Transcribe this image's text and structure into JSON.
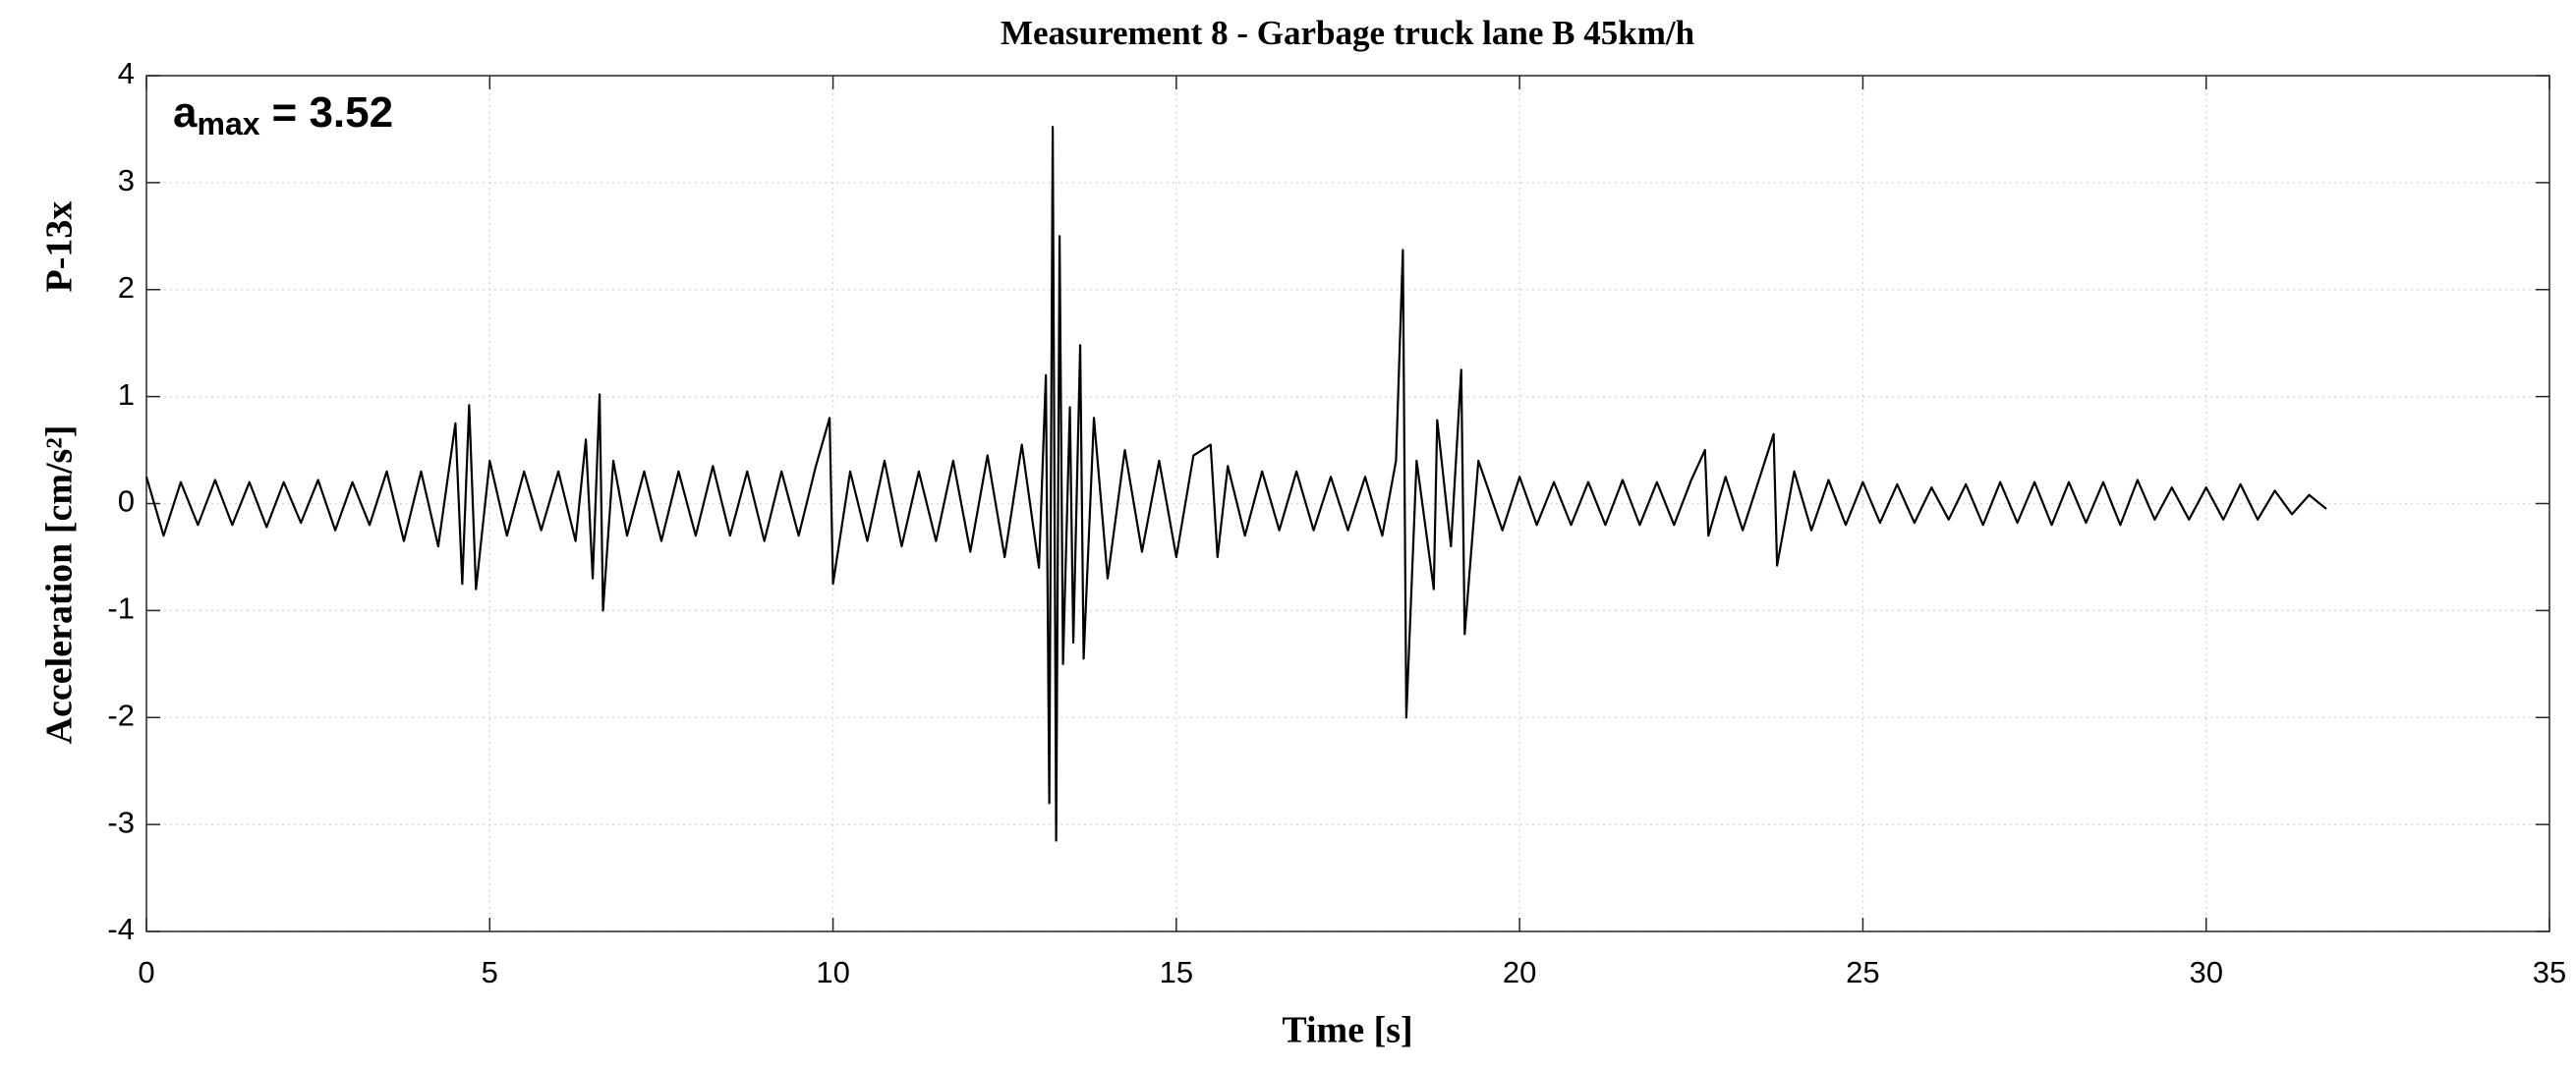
{
  "chart_data": {
    "type": "line",
    "title": "Measurement 8 - Garbage truck lane B 45km/h",
    "x_label": "Time [s]",
    "y_label": "Acceleration [cm/s²]",
    "y_label_top": "P-13x",
    "annotation": {
      "base": "a",
      "subscript": "max",
      "rest": "= 3.52"
    },
    "color": "#000000",
    "grid": true,
    "xlim": [
      0,
      35
    ],
    "xticks": [
      0,
      5,
      10,
      15,
      20,
      25,
      30,
      35
    ],
    "ylim": [
      -4,
      4
    ],
    "yticks": [
      -4,
      -3,
      -2,
      -1,
      0,
      1,
      2,
      3,
      4
    ],
    "x": [
      0,
      0.25,
      0.5,
      0.75,
      1,
      1.25,
      1.5,
      1.75,
      2,
      2.25,
      2.5,
      2.75,
      3,
      3.25,
      3.5,
      3.75,
      4,
      4.25,
      4.5,
      4.6,
      4.7,
      4.8,
      5,
      5.25,
      5.5,
      5.75,
      6,
      6.25,
      6.4,
      6.5,
      6.6,
      6.65,
      6.8,
      7,
      7.25,
      7.5,
      7.75,
      8,
      8.25,
      8.5,
      8.75,
      9,
      9.25,
      9.5,
      9.75,
      9.95,
      10,
      10.25,
      10.5,
      10.75,
      11,
      11.25,
      11.5,
      11.75,
      12,
      12.25,
      12.5,
      12.75,
      13,
      13.1,
      13.15,
      13.2,
      13.25,
      13.3,
      13.35,
      13.45,
      13.5,
      13.6,
      13.65,
      13.8,
      14,
      14.25,
      14.5,
      14.75,
      15,
      15.25,
      15.5,
      15.6,
      15.75,
      16,
      16.25,
      16.5,
      16.75,
      17,
      17.25,
      17.5,
      17.75,
      18,
      18.2,
      18.3,
      18.35,
      18.5,
      18.75,
      18.8,
      19,
      19.15,
      19.2,
      19.4,
      19.75,
      20,
      20.25,
      20.5,
      20.75,
      21,
      21.25,
      21.5,
      21.75,
      22,
      22.25,
      22.5,
      22.7,
      22.75,
      23,
      23.25,
      23.5,
      23.7,
      23.75,
      24,
      24.25,
      24.5,
      24.75,
      25,
      25.25,
      25.5,
      25.75,
      26,
      26.25,
      26.5,
      26.75,
      27,
      27.25,
      27.5,
      27.75,
      28,
      28.25,
      28.5,
      28.75,
      29,
      29.25,
      29.5,
      29.75,
      30,
      30.25,
      30.5,
      30.75,
      31,
      31.25,
      31.5,
      31.75
    ],
    "values": [
      0.25,
      -0.3,
      0.2,
      -0.2,
      0.22,
      -0.2,
      0.2,
      -0.22,
      0.2,
      -0.18,
      0.22,
      -0.25,
      0.2,
      -0.2,
      0.3,
      -0.35,
      0.3,
      -0.4,
      0.75,
      -0.75,
      0.92,
      -0.8,
      0.4,
      -0.3,
      0.3,
      -0.25,
      0.3,
      -0.35,
      0.6,
      -0.7,
      1.02,
      -1.0,
      0.4,
      -0.3,
      0.3,
      -0.35,
      0.3,
      -0.3,
      0.35,
      -0.3,
      0.3,
      -0.35,
      0.3,
      -0.3,
      0.35,
      0.8,
      -0.75,
      0.3,
      -0.35,
      0.4,
      -0.4,
      0.3,
      -0.35,
      0.4,
      -0.45,
      0.45,
      -0.5,
      0.55,
      -0.6,
      1.2,
      -2.8,
      3.52,
      -3.15,
      2.5,
      -1.5,
      0.9,
      -1.3,
      1.48,
      -1.45,
      0.8,
      -0.7,
      0.5,
      -0.45,
      0.4,
      -0.5,
      0.45,
      0.55,
      -0.5,
      0.35,
      -0.3,
      0.3,
      -0.25,
      0.3,
      -0.25,
      0.25,
      -0.25,
      0.25,
      -0.3,
      0.4,
      2.37,
      -2.0,
      0.4,
      -0.8,
      0.78,
      -0.4,
      1.25,
      -1.22,
      0.4,
      -0.25,
      0.25,
      -0.2,
      0.2,
      -0.2,
      0.2,
      -0.2,
      0.22,
      -0.2,
      0.2,
      -0.2,
      0.22,
      0.5,
      -0.3,
      0.25,
      -0.25,
      0.25,
      0.65,
      -0.58,
      0.3,
      -0.25,
      0.22,
      -0.2,
      0.2,
      -0.18,
      0.18,
      -0.18,
      0.15,
      -0.15,
      0.18,
      -0.2,
      0.2,
      -0.18,
      0.2,
      -0.2,
      0.2,
      -0.18,
      0.2,
      -0.2,
      0.22,
      -0.15,
      0.15,
      -0.15,
      0.15,
      -0.15,
      0.18,
      -0.15,
      0.12,
      -0.1,
      0.08,
      -0.05
    ]
  }
}
